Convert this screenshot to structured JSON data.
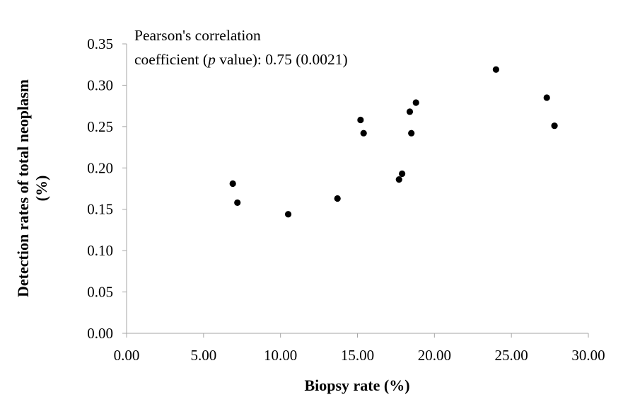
{
  "chart_data": {
    "type": "scatter",
    "title": "",
    "xlabel": "Biopsy rate (%)",
    "ylabel_line1": "Detection rates of total neoplasm",
    "ylabel_line2": "(%)",
    "xlim": [
      0,
      30
    ],
    "ylim": [
      0,
      0.35
    ],
    "grid": false,
    "legend": "none",
    "x_ticks": [
      "0.00",
      "5.00",
      "10.00",
      "15.00",
      "20.00",
      "25.00",
      "30.00"
    ],
    "y_ticks": [
      "0.00",
      "0.05",
      "0.10",
      "0.15",
      "0.20",
      "0.25",
      "0.30",
      "0.35"
    ],
    "annotation": {
      "line1": "Pearson's correlation",
      "line2_prefix": "coefficient (",
      "line2_italic": "p",
      "line2_suffix": " value): 0.75 (0.0021)"
    },
    "marker_color": "#000000",
    "points": [
      {
        "x": 6.9,
        "y": 0.181
      },
      {
        "x": 7.2,
        "y": 0.158
      },
      {
        "x": 10.5,
        "y": 0.144
      },
      {
        "x": 13.7,
        "y": 0.163
      },
      {
        "x": 15.2,
        "y": 0.258
      },
      {
        "x": 15.4,
        "y": 0.242
      },
      {
        "x": 17.7,
        "y": 0.186
      },
      {
        "x": 17.9,
        "y": 0.193
      },
      {
        "x": 18.4,
        "y": 0.268
      },
      {
        "x": 18.5,
        "y": 0.242
      },
      {
        "x": 18.8,
        "y": 0.279
      },
      {
        "x": 24.0,
        "y": 0.319
      },
      {
        "x": 27.3,
        "y": 0.285
      },
      {
        "x": 27.8,
        "y": 0.251
      }
    ]
  }
}
